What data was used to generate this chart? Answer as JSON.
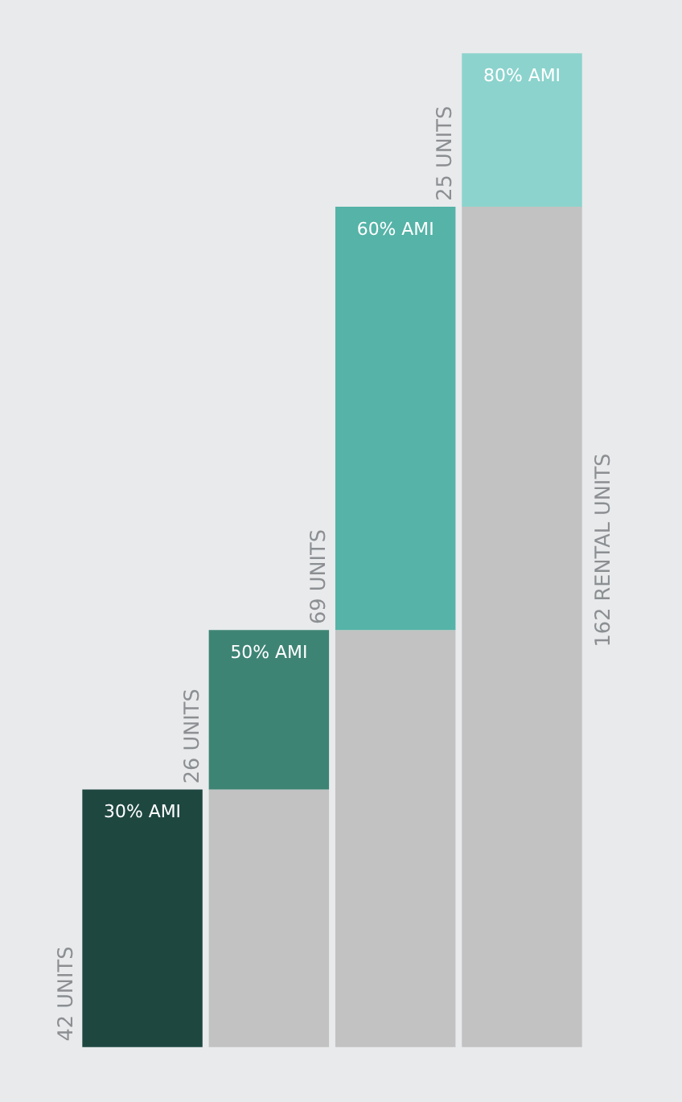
{
  "chart_data": {
    "type": "bar",
    "stacked": true,
    "categories": [
      "30% AMI",
      "50% AMI",
      "60% AMI",
      "80% AMI"
    ],
    "ylim": [
      0,
      162
    ],
    "series": [
      {
        "color": "#c2c2c2",
        "values": [
          0,
          42,
          68,
          137
        ]
      },
      {
        "colors": [
          "#1e4740",
          "#3e8475",
          "#55b3a7",
          "#8cd3cd"
        ],
        "values": [
          42,
          26,
          69,
          25
        ],
        "value_labels": [
          "42 UNITS",
          "26 UNITS",
          "69 UNITS",
          "25 UNITS"
        ]
      }
    ],
    "totals": [
      null,
      null,
      null,
      "162 RENTAL UNITS"
    ]
  }
}
